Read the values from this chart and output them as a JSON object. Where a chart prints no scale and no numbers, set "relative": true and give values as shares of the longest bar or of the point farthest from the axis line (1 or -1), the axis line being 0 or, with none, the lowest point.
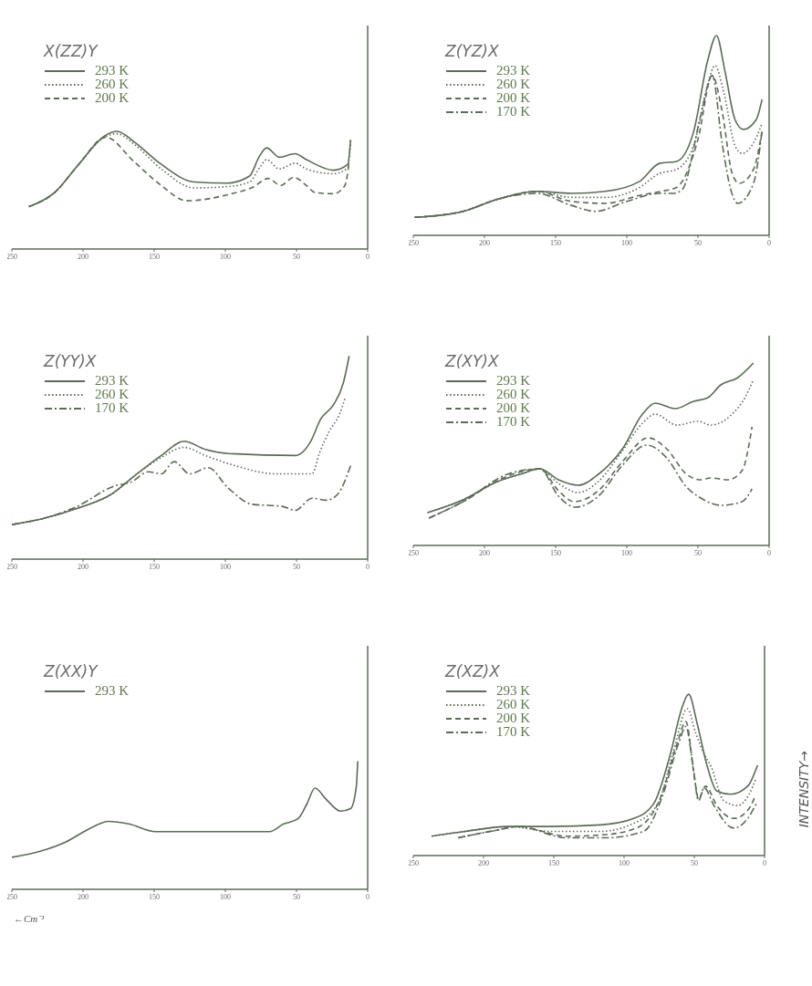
{
  "chart_data": [
    {
      "type": "line",
      "title": "X(ZZ)Y",
      "relative": true,
      "xlim": [
        250,
        0
      ],
      "xticks": [
        250,
        200,
        150,
        100,
        50,
        0
      ],
      "legend": "top left",
      "series": [
        {
          "name": "293 K",
          "color": "#5b6b57",
          "line_style": "solid",
          "x": [
            238,
            220,
            203,
            185,
            176,
            164,
            145,
            122,
            99,
            83,
            76,
            71,
            62,
            51,
            43,
            24,
            14,
            12
          ],
          "values": [
            0.36,
            0.48,
            0.72,
            0.96,
            1,
            0.91,
            0.72,
            0.57,
            0.56,
            0.62,
            0.79,
            0.86,
            0.78,
            0.81,
            0.76,
            0.67,
            0.72,
            0.93
          ]
        },
        {
          "name": "260 K",
          "color": "#5b6b57",
          "line_style": "dotted",
          "x": [
            238,
            220,
            203,
            185,
            176,
            164,
            145,
            122,
            99,
            83,
            76,
            71,
            62,
            51,
            43,
            24,
            14,
            12
          ],
          "values": [
            0.36,
            0.48,
            0.72,
            0.95,
            0.98,
            0.89,
            0.68,
            0.52,
            0.53,
            0.57,
            0.69,
            0.76,
            0.68,
            0.73,
            0.68,
            0.64,
            0.69,
            0.92
          ]
        },
        {
          "name": "200 K",
          "color": "#5b6b57",
          "line_style": "dashed",
          "x": [
            238,
            220,
            203,
            184,
            164,
            145,
            127,
            99,
            80,
            70,
            61,
            52,
            43,
            37,
            24,
            16,
            13
          ],
          "values": [
            0.36,
            0.48,
            0.72,
            0.95,
            0.74,
            0.54,
            0.41,
            0.46,
            0.53,
            0.6,
            0.54,
            0.61,
            0.54,
            0.48,
            0.47,
            0.54,
            0.74
          ]
        }
      ]
    },
    {
      "type": "line",
      "title": "Z(YZ)X",
      "relative": true,
      "xlim": [
        250,
        0
      ],
      "xticks": [
        250,
        200,
        150,
        100,
        50,
        0
      ],
      "legend": "top left",
      "series": [
        {
          "name": "293 K",
          "color": "#5b6b57",
          "line_style": "solid",
          "x": [
            249,
            215,
            191,
            163,
            139,
            115,
            91,
            77,
            65,
            53,
            43,
            37,
            31,
            24,
            18,
            9,
            5
          ],
          "values": [
            0.09,
            0.12,
            0.18,
            0.22,
            0.21,
            0.22,
            0.27,
            0.36,
            0.37,
            0.52,
            0.88,
            1,
            0.82,
            0.58,
            0.53,
            0.58,
            0.68
          ]
        },
        {
          "name": "260 K",
          "color": "#5b6b57",
          "line_style": "dotted",
          "x": [
            249,
            215,
            191,
            163,
            139,
            115,
            91,
            77,
            65,
            53,
            43,
            38,
            32,
            24,
            19,
            9,
            5
          ],
          "values": [
            0.09,
            0.12,
            0.18,
            0.22,
            0.19,
            0.19,
            0.24,
            0.31,
            0.33,
            0.45,
            0.76,
            0.85,
            0.72,
            0.45,
            0.41,
            0.49,
            0.56
          ]
        },
        {
          "name": "200 K",
          "color": "#5b6b57",
          "line_style": "dashed",
          "x": [
            249,
            215,
            191,
            163,
            139,
            115,
            91,
            76,
            65,
            50,
            40,
            33,
            26,
            21,
            11,
            5
          ],
          "values": [
            0.09,
            0.12,
            0.18,
            0.22,
            0.17,
            0.16,
            0.2,
            0.22,
            0.24,
            0.48,
            0.8,
            0.62,
            0.31,
            0.26,
            0.33,
            0.52
          ]
        },
        {
          "name": "170 K",
          "color": "#5b6b57",
          "line_style": "dashdot",
          "x": [
            249,
            215,
            191,
            163,
            139,
            122,
            100,
            77,
            67,
            61,
            48,
            40,
            33,
            27,
            22,
            11,
            5
          ],
          "values": [
            0.09,
            0.12,
            0.18,
            0.21,
            0.15,
            0.12,
            0.17,
            0.21,
            0.21,
            0.23,
            0.6,
            0.8,
            0.46,
            0.23,
            0.16,
            0.26,
            0.52
          ]
        }
      ]
    },
    {
      "type": "line",
      "title": "Z(YY)X",
      "relative": true,
      "xlim": [
        250,
        0
      ],
      "xticks": [
        250,
        200,
        150,
        100,
        50,
        0
      ],
      "legend": "top left",
      "series": [
        {
          "name": "293 K",
          "color": "#5b6b57",
          "line_style": "solid",
          "x": [
            250,
            228,
            204,
            180,
            162,
            145,
            129,
            114,
            98,
            51,
            40,
            33,
            24,
            17,
            13
          ],
          "values": [
            0.17,
            0.2,
            0.25,
            0.32,
            0.42,
            0.51,
            0.58,
            0.54,
            0.52,
            0.51,
            0.58,
            0.69,
            0.76,
            0.87,
            1
          ]
        },
        {
          "name": "260 K",
          "color": "#5b6b57",
          "line_style": "dotted",
          "x": [
            250,
            228,
            204,
            180,
            162,
            145,
            129,
            114,
            93,
            65,
            39,
            34,
            27,
            20,
            16
          ],
          "values": [
            0.17,
            0.2,
            0.25,
            0.32,
            0.42,
            0.5,
            0.55,
            0.51,
            0.46,
            0.42,
            0.42,
            0.52,
            0.63,
            0.71,
            0.79
          ]
        },
        {
          "name": "170 K",
          "color": "#5b6b57",
          "line_style": "dashdot",
          "x": [
            250,
            228,
            204,
            178,
            166,
            154,
            145,
            136,
            125,
            112,
            98,
            81,
            60,
            51,
            39,
            29,
            21,
            12
          ],
          "values": [
            0.17,
            0.2,
            0.26,
            0.36,
            0.38,
            0.43,
            0.42,
            0.48,
            0.42,
            0.45,
            0.35,
            0.27,
            0.26,
            0.24,
            0.3,
            0.29,
            0.32,
            0.46
          ]
        }
      ]
    },
    {
      "type": "line",
      "title": "Z(XY)X",
      "relative": true,
      "xlim": [
        250,
        0
      ],
      "xticks": [
        250,
        200,
        150,
        100,
        50,
        0
      ],
      "legend": "top left",
      "series": [
        {
          "name": "293 K",
          "color": "#5b6b57",
          "line_style": "solid",
          "x": [
            240,
            215,
            191,
            175,
            161,
            148,
            134,
            120,
            103,
            89,
            80,
            66,
            53,
            43,
            34,
            22,
            11
          ],
          "values": [
            0.18,
            0.25,
            0.35,
            0.39,
            0.42,
            0.36,
            0.33,
            0.39,
            0.53,
            0.72,
            0.78,
            0.75,
            0.79,
            0.81,
            0.88,
            0.92,
            1
          ]
        },
        {
          "name": "260 K",
          "color": "#5b6b57",
          "line_style": "dotted",
          "x": [
            240,
            215,
            191,
            175,
            161,
            148,
            134,
            120,
            103,
            89,
            80,
            65,
            50,
            41,
            26,
            17,
            11
          ],
          "values": [
            0.18,
            0.25,
            0.35,
            0.39,
            0.42,
            0.34,
            0.29,
            0.35,
            0.52,
            0.67,
            0.72,
            0.66,
            0.68,
            0.66,
            0.72,
            0.81,
            0.91
          ]
        },
        {
          "name": "200 K",
          "color": "#5b6b57",
          "line_style": "dashed",
          "x": [
            239,
            215,
            187,
            161,
            148,
            137,
            120,
            103,
            85,
            72,
            58,
            48,
            41,
            29,
            19,
            12
          ],
          "values": [
            0.15,
            0.24,
            0.37,
            0.42,
            0.3,
            0.24,
            0.3,
            0.46,
            0.59,
            0.53,
            0.39,
            0.36,
            0.37,
            0.36,
            0.41,
            0.65
          ]
        },
        {
          "name": "170 K",
          "color": "#5b6b57",
          "line_style": "dashdot",
          "x": [
            239,
            215,
            184,
            161,
            148,
            136,
            120,
            103,
            86,
            72,
            58,
            48,
            34,
            19,
            12
          ],
          "values": [
            0.15,
            0.24,
            0.39,
            0.42,
            0.27,
            0.21,
            0.27,
            0.44,
            0.55,
            0.48,
            0.32,
            0.26,
            0.22,
            0.24,
            0.31
          ]
        }
      ]
    },
    {
      "type": "line",
      "title": "Z(XX)Y",
      "xlabel": "←Cm⁻¹",
      "relative": true,
      "xlim": [
        250,
        0
      ],
      "xticks": [
        250,
        200,
        150,
        100,
        50,
        0
      ],
      "legend": "top left",
      "series": [
        {
          "name": "293 K",
          "color": "#5b6b57",
          "line_style": "solid",
          "x": [
            250,
            229,
            212,
            196,
            182,
            168,
            149,
            116,
            69,
            59,
            49,
            43,
            37,
            29,
            19,
            12,
            8,
            7
          ],
          "values": [
            0.25,
            0.3,
            0.37,
            0.47,
            0.53,
            0.51,
            0.45,
            0.45,
            0.45,
            0.51,
            0.55,
            0.66,
            0.79,
            0.7,
            0.61,
            0.63,
            0.8,
            1
          ]
        }
      ]
    },
    {
      "type": "line",
      "title": "Z(XZ)X",
      "ylabel": "INTENSITY→",
      "relative": true,
      "xlim": [
        250,
        0
      ],
      "xticks": [
        250,
        200,
        150,
        100,
        50,
        0
      ],
      "legend": "top left",
      "series": [
        {
          "name": "293 K",
          "color": "#5b6b57",
          "line_style": "solid",
          "x": [
            237,
            213,
            182,
            153,
            117,
            93,
            79,
            67,
            59,
            54,
            48,
            41,
            34,
            24,
            12,
            5
          ],
          "values": [
            0.12,
            0.15,
            0.18,
            0.18,
            0.19,
            0.23,
            0.32,
            0.63,
            0.91,
            1,
            0.82,
            0.56,
            0.4,
            0.38,
            0.43,
            0.56
          ]
        },
        {
          "name": "260 K",
          "color": "#5b6b57",
          "line_style": "dotted",
          "x": [
            237,
            213,
            182,
            153,
            117,
            93,
            76,
            65,
            55,
            49,
            43,
            38,
            29,
            19,
            11,
            6
          ],
          "values": [
            0.12,
            0.15,
            0.18,
            0.15,
            0.15,
            0.2,
            0.32,
            0.64,
            0.91,
            0.76,
            0.63,
            0.55,
            0.34,
            0.31,
            0.38,
            0.48
          ]
        },
        {
          "name": "200 K",
          "color": "#5b6b57",
          "line_style": "dashed",
          "x": [
            218,
            189,
            175,
            141,
            113,
            89,
            74,
            62,
            56,
            50,
            47,
            42,
            34,
            22,
            12,
            7
          ],
          "values": [
            0.11,
            0.16,
            0.18,
            0.12,
            0.13,
            0.18,
            0.36,
            0.7,
            0.83,
            0.49,
            0.35,
            0.43,
            0.31,
            0.23,
            0.28,
            0.36
          ]
        },
        {
          "name": "170 K",
          "color": "#5b6b57",
          "line_style": "dashdot",
          "x": [
            218,
            189,
            175,
            141,
            113,
            86,
            73,
            61,
            56,
            51,
            47,
            43,
            36,
            22,
            12,
            6
          ],
          "values": [
            0.11,
            0.16,
            0.18,
            0.11,
            0.11,
            0.15,
            0.36,
            0.7,
            0.8,
            0.56,
            0.34,
            0.42,
            0.31,
            0.17,
            0.23,
            0.32
          ]
        }
      ]
    }
  ]
}
